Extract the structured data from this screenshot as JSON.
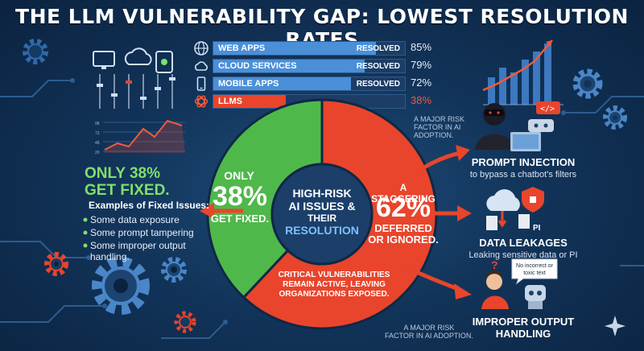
{
  "title": "THE LLM VULNERABILITY GAP: LOWEST RESOLUTION RATES",
  "colors": {
    "background": "#12345a",
    "blue": "#4a8fd8",
    "red": "#e8452c",
    "green": "#4fb84a",
    "green_text": "#7ee06a",
    "accent_orange": "#f07030"
  },
  "chart_data": [
    {
      "type": "bar",
      "categories": [
        "WEB APPS",
        "CLOUD SERVICES",
        "MOBILE APPS",
        "LLMs"
      ],
      "values": [
        85,
        79,
        72,
        38
      ],
      "status_labels": [
        "RESOLVED",
        "RESOLVED",
        "RESOLVED",
        ""
      ],
      "value_labels": [
        "85%",
        "79%",
        "72%",
        "38%"
      ],
      "icons": [
        "globe-icon",
        "cloud-icon",
        "mobile-icon",
        "openai-icon"
      ],
      "colors": [
        "#4a8fd8",
        "#4a8fd8",
        "#4a8fd8",
        "#e8452c"
      ],
      "ylim": [
        0,
        100
      ]
    },
    {
      "type": "pie",
      "categories": [
        "Fixed",
        "Deferred or ignored"
      ],
      "values": [
        38,
        62
      ],
      "colors": [
        "#4fb84a",
        "#e8452c"
      ],
      "center_label": [
        "HIGH-RISK",
        "AI ISSUES &",
        "THEIR",
        "RESOLUTION"
      ],
      "fixed_label": {
        "prefix": "ONLY",
        "pct": "38%",
        "suffix": "GET FIXED."
      },
      "deferred_label": {
        "prefix": "A STAGGERING",
        "pct": "62%",
        "suffix1": "DEFERRED",
        "suffix2": "OR IGNORED."
      },
      "bottom_note": [
        "CRITICAL VULNERABILITIES",
        "REMAIN ACTIVE, LEAVING",
        "ORGANIZATIONS EXPOSED."
      ]
    }
  ],
  "left_panel": {
    "heading_line1": "ONLY 38%",
    "heading_line2": "GET FIXED.",
    "sub": "Examples of Fixed Issues:",
    "items": [
      "Some data exposure",
      "Some prompt tampering",
      "Some improper output",
      "handling."
    ]
  },
  "right_panel": {
    "note_top": [
      "A MAJOR RISK",
      "FACTOR IN AI",
      "ADOPTION."
    ],
    "note_bottom": [
      "A MAJOR RISK",
      "FACTOR IN AI ADOPTION."
    ],
    "items": [
      {
        "title": "PROMPT INJECTION",
        "desc": "to bypass a chatbot's filters"
      },
      {
        "title": "DATA LEAKAGES",
        "desc": "Leaking sensitive data or PI"
      },
      {
        "title1": "IMPROPER OUTPUT",
        "title2": "HANDLING"
      }
    ],
    "pi_label": "PI",
    "speech_bubble": [
      "No incorrect or",
      "toxic text"
    ]
  }
}
